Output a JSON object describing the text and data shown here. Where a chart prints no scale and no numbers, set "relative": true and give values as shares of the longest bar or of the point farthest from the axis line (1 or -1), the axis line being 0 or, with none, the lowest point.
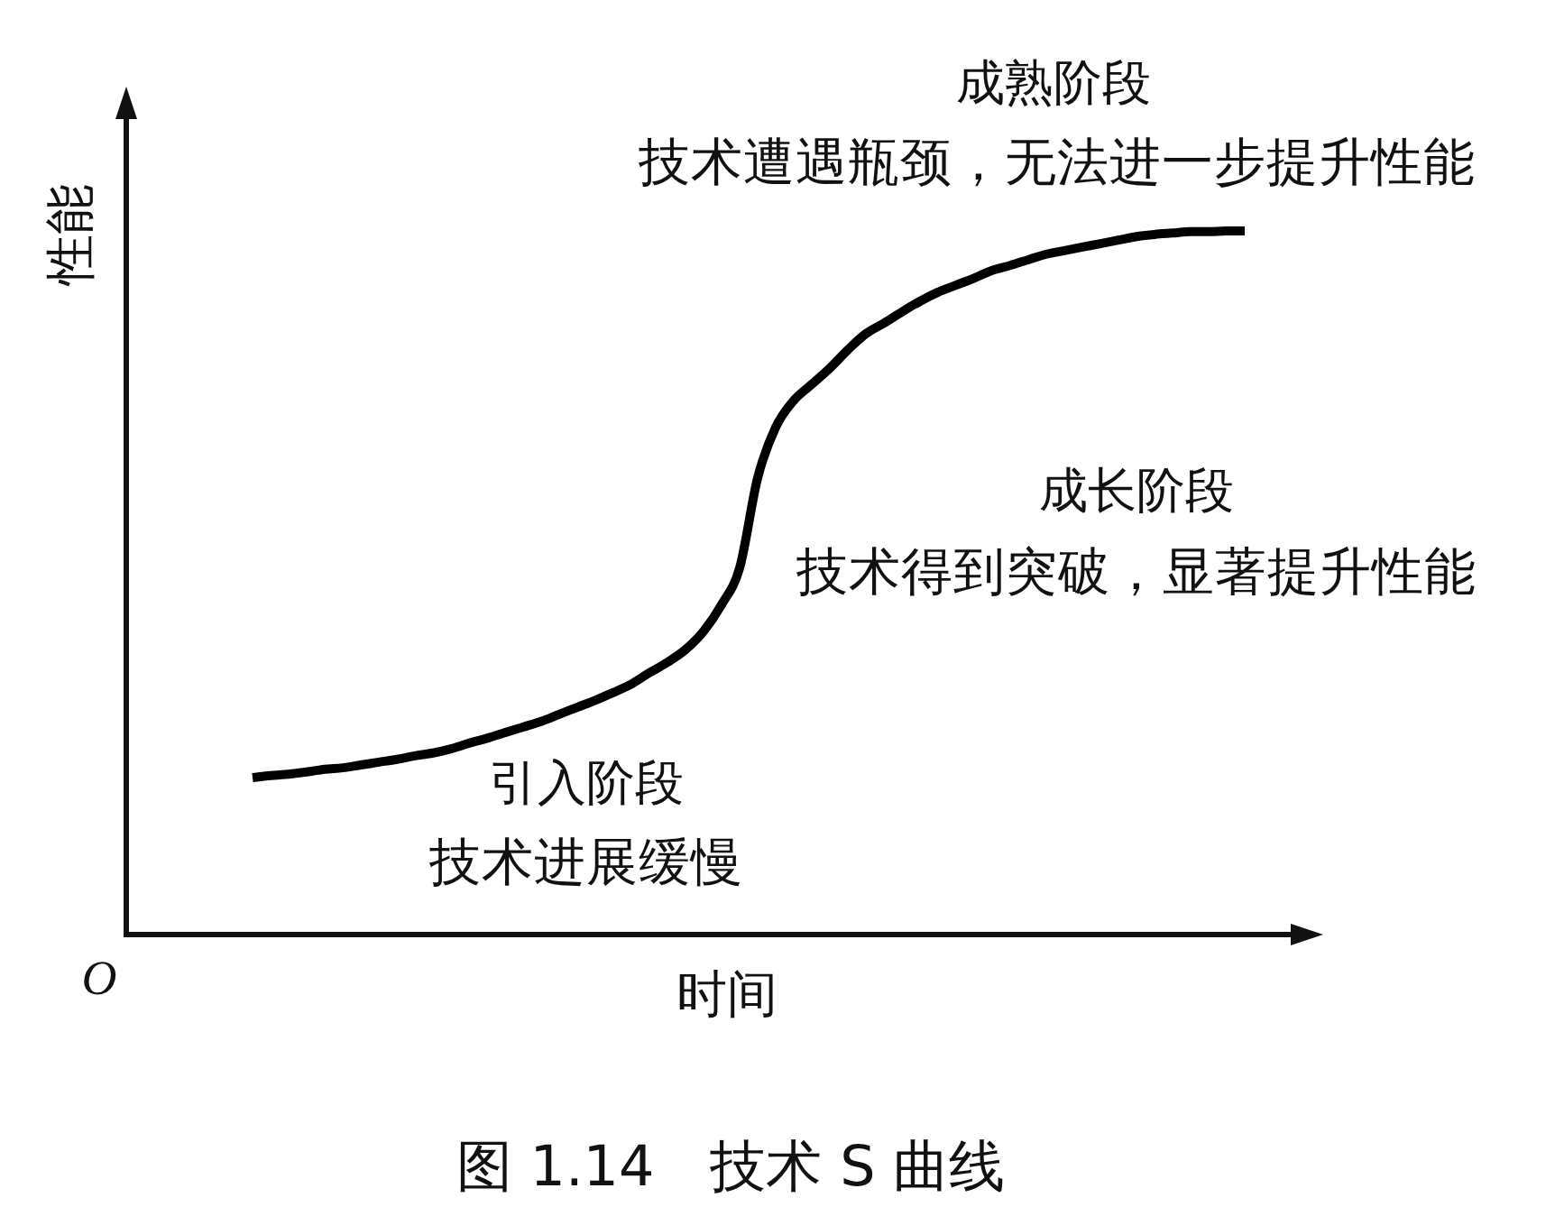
{
  "chart_data": {
    "type": "line",
    "title": "图 1.14　技术 S 曲线",
    "xlabel": "时间",
    "ylabel": "性能",
    "relative": true,
    "annotations": [
      "成熟阶段",
      "技术遭遇瓶颈，无法进一步提升性能",
      "成长阶段",
      "技术得到突破，显著提升性能",
      "引入阶段",
      "技术进展缓慢",
      "O"
    ],
    "categories": [
      null,
      null,
      null,
      null,
      null,
      null,
      null,
      null,
      null,
      null,
      null,
      null,
      null,
      null,
      null,
      null,
      null,
      null,
      null,
      null,
      null,
      null,
      null,
      null,
      null,
      null,
      null,
      null,
      null,
      null,
      null,
      null,
      null,
      null,
      null,
      null,
      null,
      null,
      null,
      null,
      null,
      null,
      null,
      null,
      null,
      null,
      null,
      null,
      null,
      null,
      null,
      null,
      null,
      null,
      null,
      null
    ],
    "series": [
      {
        "color": "#000000",
        "values": [
          0.223,
          0.226,
          0.228,
          0.231,
          0.235,
          0.237,
          0.241,
          0.245,
          0.249,
          0.254,
          0.258,
          0.264,
          0.272,
          0.279,
          0.287,
          0.295,
          0.303,
          0.313,
          0.323,
          0.333,
          0.344,
          0.356,
          0.372,
          0.387,
          0.405,
          0.431,
          0.469,
          0.521,
          0.649,
          0.721,
          0.759,
          0.782,
          0.805,
          0.831,
          0.854,
          0.869,
          0.885,
          0.9,
          0.913,
          0.923,
          0.933,
          0.944,
          0.951,
          0.959,
          0.967,
          0.972,
          0.977,
          0.982,
          0.987,
          0.992,
          0.995,
          0.997,
          0.999,
          0.999,
          1,
          1
        ]
      }
    ]
  }
}
